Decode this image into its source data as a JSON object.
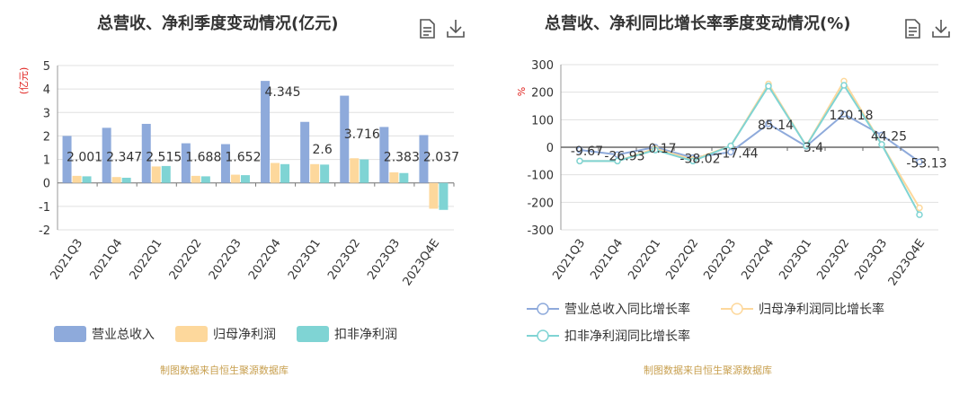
{
  "left": {
    "title": "总营收、净利季度变动情况(亿元)",
    "unit_label": "(亿元)",
    "source": "制图数据来自恒生聚源数据库",
    "legend": [
      {
        "label": "营业总收入",
        "color": "#8eaadb"
      },
      {
        "label": "归母净利润",
        "color": "#fdd89c"
      },
      {
        "label": "扣非净利润",
        "color": "#7fd4d4"
      }
    ]
  },
  "right": {
    "title": "总营收、净利同比增长率季度变动情况(%)",
    "unit_label": "%",
    "source": "制图数据来自恒生聚源数据库",
    "legend": [
      {
        "label": "营业总收入同比增长率",
        "color": "#8eaadb"
      },
      {
        "label": "归母净利润同比增长率",
        "color": "#fdd89c"
      },
      {
        "label": "扣非净利润同比增长率",
        "color": "#7fd4d4"
      }
    ]
  },
  "icons": [
    "document-icon",
    "download-icon"
  ],
  "chart_data": [
    {
      "type": "bar",
      "title": "总营收、净利季度变动情况(亿元)",
      "ylabel": "(亿元)",
      "ylim": [
        -2,
        5
      ],
      "yticks": [
        -2,
        -1,
        0,
        1,
        2,
        3,
        4,
        5
      ],
      "categories": [
        "2021Q3",
        "2021Q4",
        "2022Q1",
        "2022Q2",
        "2022Q3",
        "2022Q4",
        "2023Q1",
        "2023Q2",
        "2023Q3",
        "2023Q4E"
      ],
      "series": [
        {
          "name": "营业总收入",
          "values": [
            2.001,
            2.347,
            2.515,
            1.688,
            1.652,
            4.345,
            2.6,
            3.716,
            2.383,
            2.037
          ]
        },
        {
          "name": "归母净利润",
          "values": [
            0.3,
            0.25,
            0.7,
            0.3,
            0.35,
            0.85,
            0.8,
            1.05,
            0.45,
            -1.1
          ]
        },
        {
          "name": "扣非净利润",
          "values": [
            0.28,
            0.22,
            0.72,
            0.28,
            0.33,
            0.8,
            0.78,
            1.0,
            0.42,
            -1.15
          ]
        }
      ],
      "data_labels": [
        "2.001",
        "2.347",
        "2.515",
        "1.688",
        "1.652",
        "4.345",
        "2.6",
        "3.716",
        "2.383",
        "2.037"
      ],
      "grid": true,
      "legend_position": "bottom"
    },
    {
      "type": "line",
      "title": "总营收、净利同比增长率季度变动情况(%)",
      "ylabel": "%",
      "ylim": [
        -300,
        300
      ],
      "yticks": [
        -300,
        -200,
        -100,
        0,
        100,
        200,
        300
      ],
      "categories": [
        "2021Q3",
        "2021Q4",
        "2022Q1",
        "2022Q2",
        "2022Q3",
        "2022Q4",
        "2023Q1",
        "2023Q2",
        "2023Q3",
        "2023Q4E"
      ],
      "series": [
        {
          "name": "营业总收入同比增长率",
          "values": [
            -9.67,
            -26.93,
            0.17,
            -38.02,
            -17.44,
            85.14,
            3.4,
            120.18,
            44.25,
            -53.13
          ]
        },
        {
          "name": "归母净利润同比增长率",
          "values": [
            -50,
            -50,
            -5,
            -45,
            5,
            230,
            5,
            240,
            10,
            -220
          ]
        },
        {
          "name": "扣非净利润同比增长率",
          "values": [
            -50,
            -50,
            -10,
            -50,
            5,
            222,
            5,
            225,
            10,
            -245
          ]
        }
      ],
      "data_labels": [
        "-9.67",
        "-26.93",
        "0.17",
        "-38.02",
        "-17.44",
        "85.14",
        "3.4",
        "120.18",
        "44.25",
        "-53.13"
      ],
      "grid": true,
      "legend_position": "bottom"
    }
  ]
}
